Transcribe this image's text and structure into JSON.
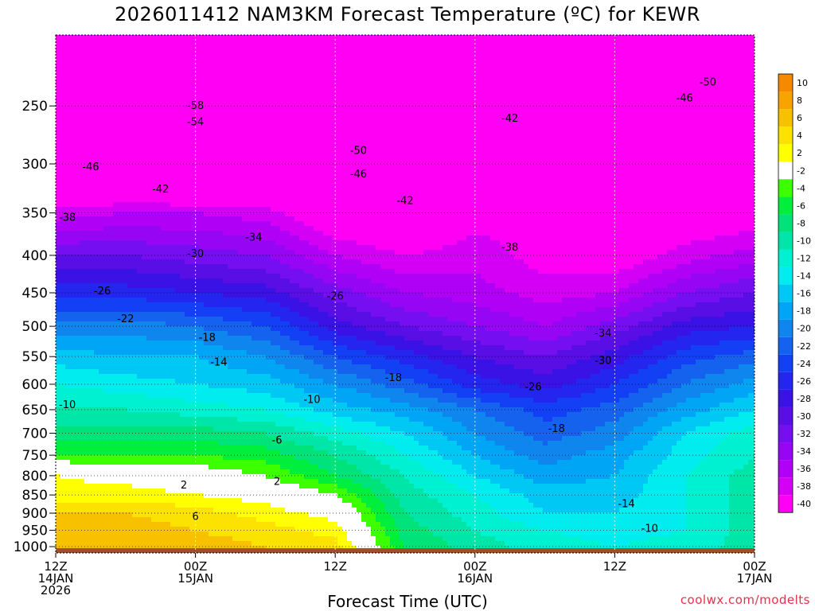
{
  "title": "2026011412 NAM3KM Forecast Temperature (ºC) for KEWR",
  "footer": {
    "xlabel": "Forecast Time (UTC)",
    "credit": "coolwx.com/modelts"
  },
  "colors": {
    "ground": "#a14f28",
    "contour": "#000000",
    "freezing_line": "#e0157a",
    "credit": "#e0324a"
  },
  "chart_data": {
    "type": "heatmap",
    "title": "2026011412 NAM3KM Forecast Temperature (ºC) for KEWR",
    "xlabel": "Forecast Time (UTC)",
    "ylabel": "",
    "x_ticks": [
      {
        "hour": 0,
        "lines": [
          "12Z",
          "14JAN",
          "2026"
        ]
      },
      {
        "hour": 12,
        "lines": [
          "00Z",
          "15JAN"
        ]
      },
      {
        "hour": 24,
        "lines": [
          "12Z"
        ]
      },
      {
        "hour": 36,
        "lines": [
          "00Z",
          "16JAN"
        ]
      },
      {
        "hour": 48,
        "lines": [
          "12Z"
        ]
      },
      {
        "hour": 60,
        "lines": [
          "00Z",
          "17JAN"
        ]
      }
    ],
    "xlim": [
      0,
      60
    ],
    "y_ticks": [
      250,
      300,
      350,
      400,
      450,
      500,
      550,
      600,
      650,
      700,
      750,
      800,
      850,
      900,
      950,
      1000
    ],
    "ylim_hpa": [
      200,
      1020
    ],
    "y_scale": "log-pressure",
    "grid": true,
    "colorbar": {
      "placement": "right",
      "labels": [
        "10",
        "8",
        "6",
        "4",
        "2",
        "-2",
        "-4",
        "-6",
        "-8",
        "-10",
        "-12",
        "-14",
        "-16",
        "-18",
        "-20",
        "-22",
        "-24",
        "-26",
        "-28",
        "-30",
        "-32",
        "-34",
        "-36",
        "-38",
        "-40"
      ],
      "colors": [
        "#f58a00",
        "#f7a300",
        "#f8c100",
        "#fbe200",
        "#ffff00",
        "#ffffff",
        "#3cff00",
        "#00ef3c",
        "#00e27a",
        "#00e6a8",
        "#00f0d2",
        "#00ecef",
        "#00c8f5",
        "#00a6f5",
        "#0e86ee",
        "#1462ee",
        "#1440f5",
        "#2525f0",
        "#3a12e6",
        "#5a0ee6",
        "#760ef2",
        "#9606f5",
        "#b000f5",
        "#d400f5",
        "#ff00f5"
      ]
    },
    "temperature_by_level": {
      "pressure_hpa": [
        1000,
        950,
        900,
        850,
        800,
        750,
        700,
        650,
        600,
        550,
        500,
        450,
        400,
        350,
        300,
        250,
        200
      ],
      "hours": [
        0,
        6,
        12,
        18,
        24,
        30,
        36,
        42,
        48,
        54,
        60
      ],
      "values": [
        [
          6,
          7,
          7,
          6,
          5,
          -6,
          -9,
          -11,
          -12,
          -11,
          -9
        ],
        [
          7,
          7,
          6,
          5,
          3,
          -7,
          -10,
          -12,
          -13,
          -12,
          -9
        ],
        [
          6,
          6,
          5,
          3,
          1,
          -8,
          -11,
          -14,
          -14,
          -12,
          -9
        ],
        [
          3,
          3,
          2,
          1,
          -2,
          -9,
          -12,
          -15,
          -15,
          -12,
          -9
        ],
        [
          2,
          1,
          0,
          -2,
          -6,
          -10,
          -14,
          -17,
          -16,
          -12,
          -9
        ],
        [
          -4,
          -4,
          -4,
          -5,
          -8,
          -12,
          -16,
          -19,
          -17,
          -13,
          -10
        ],
        [
          -7,
          -7,
          -7,
          -8,
          -11,
          -14,
          -18,
          -21,
          -19,
          -14,
          -11
        ],
        [
          -10,
          -10,
          -11,
          -12,
          -15,
          -17,
          -20,
          -23,
          -21,
          -17,
          -14
        ],
        [
          -12,
          -13,
          -14,
          -15,
          -18,
          -21,
          -25,
          -27,
          -24,
          -20,
          -17
        ],
        [
          -15,
          -16,
          -16,
          -18,
          -22,
          -25,
          -28,
          -30,
          -27,
          -23,
          -21
        ],
        [
          -19,
          -19,
          -20,
          -22,
          -27,
          -30,
          -32,
          -34,
          -31,
          -27,
          -26
        ],
        [
          -25,
          -25,
          -26,
          -27,
          -31,
          -34,
          -35,
          -37,
          -36,
          -32,
          -30
        ],
        [
          -30,
          -30,
          -31,
          -32,
          -36,
          -38,
          -37,
          -39,
          -40,
          -37,
          -35
        ],
        [
          -37,
          -36,
          -36,
          -37,
          -41,
          -42,
          -39,
          -38,
          -43,
          -41,
          -40
        ],
        [
          -46,
          -47,
          -48,
          -47,
          -47,
          -45,
          -44,
          -44,
          -46,
          -46,
          -45
        ],
        [
          -56,
          -56,
          -55,
          -54,
          -51,
          -46,
          -45,
          -46,
          -47,
          -48,
          -49
        ],
        [
          -59,
          -58,
          -57,
          -55,
          -52,
          -49,
          -48,
          -49,
          -50,
          -52,
          -52
        ]
      ]
    },
    "contour_labels": [
      {
        "text": "-58",
        "hour": 12,
        "hpa": 250
      },
      {
        "text": "-54",
        "hour": 12,
        "hpa": 263
      },
      {
        "text": "-50",
        "hour": 26,
        "hpa": 288
      },
      {
        "text": "-46",
        "hour": 3,
        "hpa": 303
      },
      {
        "text": "-46",
        "hour": 26,
        "hpa": 310
      },
      {
        "text": "-42",
        "hour": 9,
        "hpa": 325
      },
      {
        "text": "-42",
        "hour": 30,
        "hpa": 337
      },
      {
        "text": "-42",
        "hour": 39,
        "hpa": 260
      },
      {
        "text": "-46",
        "hour": 54,
        "hpa": 244
      },
      {
        "text": "-50",
        "hour": 56,
        "hpa": 232
      },
      {
        "text": "-38",
        "hour": 1,
        "hpa": 355
      },
      {
        "text": "-38",
        "hour": 39,
        "hpa": 390
      },
      {
        "text": "-34",
        "hour": 17,
        "hpa": 378
      },
      {
        "text": "-30",
        "hour": 12,
        "hpa": 398
      },
      {
        "text": "-26",
        "hour": 4,
        "hpa": 448
      },
      {
        "text": "-26",
        "hour": 24,
        "hpa": 455
      },
      {
        "text": "-22",
        "hour": 6,
        "hpa": 489
      },
      {
        "text": "-18",
        "hour": 13,
        "hpa": 518
      },
      {
        "text": "-18",
        "hour": 29,
        "hpa": 588
      },
      {
        "text": "-18",
        "hour": 43,
        "hpa": 690
      },
      {
        "text": "-14",
        "hour": 14,
        "hpa": 560
      },
      {
        "text": "-14",
        "hour": 49,
        "hpa": 875
      },
      {
        "text": "-10",
        "hour": 1,
        "hpa": 640
      },
      {
        "text": "-10",
        "hour": 22,
        "hpa": 630
      },
      {
        "text": "-10",
        "hour": 51,
        "hpa": 945
      },
      {
        "text": "-6",
        "hour": 19,
        "hpa": 716
      },
      {
        "text": "-30",
        "hour": 47,
        "hpa": 557
      },
      {
        "text": "-34",
        "hour": 47,
        "hpa": 511
      },
      {
        "text": "-26",
        "hour": 41,
        "hpa": 605
      },
      {
        "text": "2",
        "hour": 11,
        "hpa": 825
      },
      {
        "text": "2",
        "hour": 19,
        "hpa": 815
      },
      {
        "text": "6",
        "hour": 12,
        "hpa": 910
      }
    ]
  }
}
